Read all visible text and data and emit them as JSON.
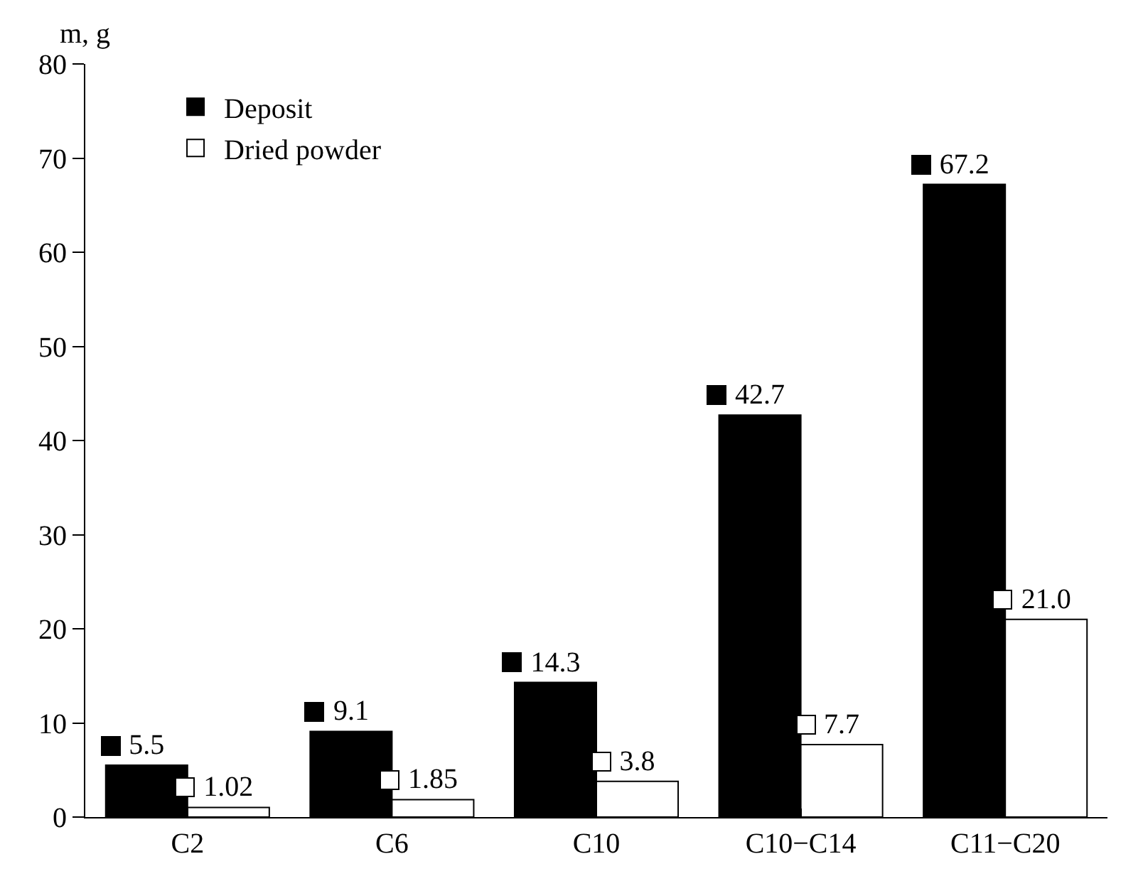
{
  "chart_data": {
    "type": "bar",
    "ylabel": "m, g",
    "categories": [
      "C2",
      "C6",
      "C10",
      "C10−C14",
      "C11−C20"
    ],
    "series": [
      {
        "name": "Deposit",
        "color": "#000000",
        "values": [
          5.5,
          9.1,
          14.3,
          42.7,
          67.2
        ],
        "value_labels": [
          "5.5",
          "9.1",
          "14.3",
          "42.7",
          "67.2"
        ]
      },
      {
        "name": "Dried powder",
        "color": "#ffffff",
        "values": [
          1.02,
          1.85,
          3.8,
          7.7,
          21.0
        ],
        "value_labels": [
          "1.02",
          "1.85",
          "3.8",
          "7.7",
          "21.0"
        ]
      }
    ],
    "ylim": [
      0,
      80
    ],
    "yticks": [
      0,
      10,
      20,
      30,
      40,
      50,
      60,
      70,
      80
    ],
    "grid": false,
    "legend": "top left"
  }
}
